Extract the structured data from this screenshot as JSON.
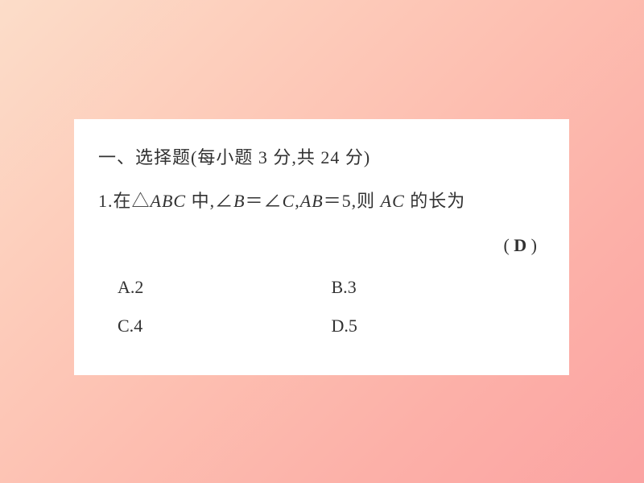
{
  "card": {
    "background_color": "#ffffff",
    "text_color": "#323232",
    "font_size": 22
  },
  "gradient": {
    "start": "#fcddc9",
    "mid1": "#fdcebc",
    "mid2": "#fdbfb1",
    "mid3": "#fcb0a8",
    "end": "#fba3a2"
  },
  "section": {
    "prefix": "一、选择题(每小题 3 分,共 24 分)"
  },
  "question": {
    "number": "1.",
    "prefix": "在△",
    "triangle": "ABC",
    "mid1": " 中,∠",
    "angleB": "B",
    "eq": "＝∠",
    "angleC": "C",
    "mid2": ",",
    "sideAB": "AB",
    "eqval": "＝5,则 ",
    "sideAC": "AC",
    "suffix": " 的长为"
  },
  "answer": {
    "open": "( ",
    "letter": "D",
    "close": " )"
  },
  "options": {
    "a": {
      "letter": "A.",
      "value": "2"
    },
    "b": {
      "letter": "B.",
      "value": "3"
    },
    "c": {
      "letter": "C.",
      "value": "4"
    },
    "d": {
      "letter": "D.",
      "value": "5"
    }
  }
}
